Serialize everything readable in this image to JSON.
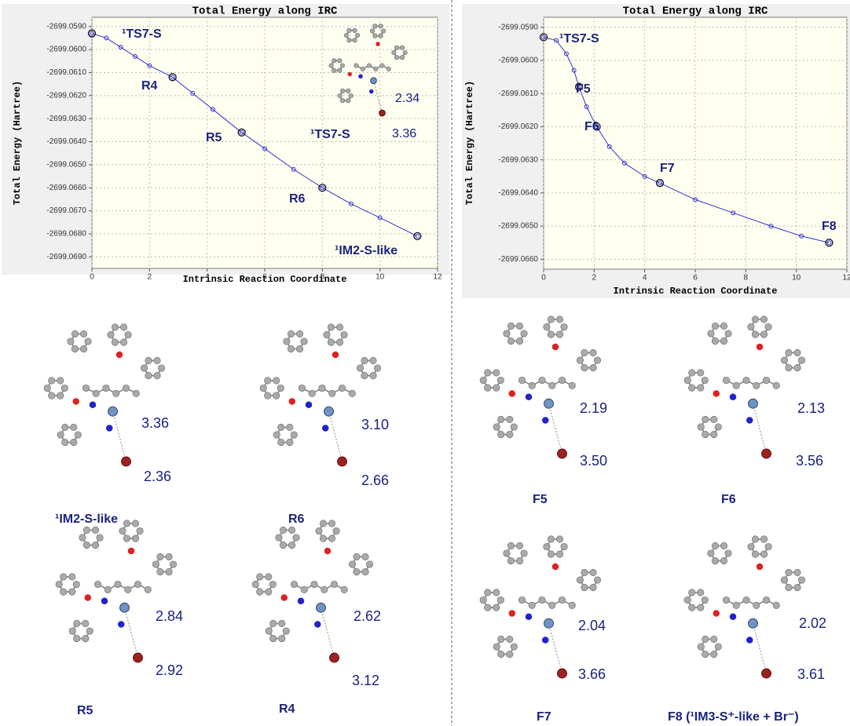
{
  "chart_data": [
    {
      "type": "line",
      "title": "Total Energy along IRC",
      "xlabel": "Intrinsic Reaction Coordinate",
      "ylabel": "Total Energy (Hartree)",
      "color": "#3333cc",
      "grid": true,
      "x": [
        0,
        0.5,
        1,
        1.5,
        2,
        2.8,
        3.5,
        4.2,
        5.2,
        6,
        7,
        8,
        9,
        10,
        11.3
      ],
      "values": [
        -2699.0593,
        -2699.0595,
        -2699.0599,
        -2699.0603,
        -2699.0607,
        -2699.0612,
        -2699.0619,
        -2699.0626,
        -2699.0636,
        -2699.0643,
        -2699.0652,
        -2699.066,
        -2699.0667,
        -2699.0673,
        -2699.0681
      ],
      "xlim": [
        0,
        12
      ],
      "xticks": [
        0,
        2,
        4,
        6,
        8,
        10,
        12
      ],
      "ylim": [
        -2699.0695,
        -2699.0586
      ],
      "yticks": [
        {
          "value": -2699.059,
          "label": "-2699.0590"
        },
        {
          "value": -2699.06,
          "label": "-2699.0600"
        },
        {
          "value": -2699.061,
          "label": "-2699.0610"
        },
        {
          "value": -2699.062,
          "label": "-2699.0620"
        },
        {
          "value": -2699.063,
          "label": "-2699.0630"
        },
        {
          "value": -2699.064,
          "label": "-2699.0640"
        },
        {
          "value": -2699.065,
          "label": "-2699.0650"
        },
        {
          "value": -2699.066,
          "label": "-2699.0660"
        },
        {
          "value": -2699.067,
          "label": "-2699.0670"
        },
        {
          "value": -2699.068,
          "label": "-2699.0680"
        },
        {
          "value": -2699.069,
          "label": "-2699.0690"
        }
      ],
      "points": [
        {
          "label": "¹TS7-S",
          "x": 0,
          "y": -2699.0593
        },
        {
          "label": "R4",
          "x": 2.8,
          "y": -2699.0612
        },
        {
          "label": "R5",
          "x": 5.2,
          "y": -2699.0636
        },
        {
          "label": "R6",
          "x": 8,
          "y": -2699.066
        },
        {
          "label": "¹IM2-S-like",
          "x": 11.3,
          "y": -2699.0681
        }
      ],
      "inset_label": "¹TS7-S",
      "inset_distances": [
        "2.34",
        "3.36"
      ]
    },
    {
      "type": "line",
      "title": "Total Energy along IRC",
      "xlabel": "Intrinsic Reaction Coordinate",
      "ylabel": "Total Energy (Hartree)",
      "color": "#3333cc",
      "grid": true,
      "x": [
        0,
        0.5,
        0.9,
        1.2,
        1.4,
        1.7,
        2.1,
        2.6,
        3.2,
        4,
        4.6,
        6,
        7.5,
        9,
        10.2,
        11.3
      ],
      "values": [
        -2699.0593,
        -2699.0594,
        -2699.0598,
        -2699.0603,
        -2699.0608,
        -2699.0614,
        -2699.062,
        -2699.0626,
        -2699.0631,
        -2699.0635,
        -2699.0637,
        -2699.0642,
        -2699.0646,
        -2699.065,
        -2699.0653,
        -2699.0655
      ],
      "xlim": [
        0,
        12
      ],
      "xticks": [
        0,
        2,
        4,
        6,
        8,
        10,
        12
      ],
      "ylim": [
        -2699.0663,
        -2699.0587
      ],
      "yticks": [
        {
          "value": -2699.059,
          "label": "-2699.0590"
        },
        {
          "value": -2699.06,
          "label": "-2699.0600"
        },
        {
          "value": -2699.061,
          "label": "-2699.0610"
        },
        {
          "value": -2699.062,
          "label": "-2699.0620"
        },
        {
          "value": -2699.063,
          "label": "-2699.0630"
        },
        {
          "value": -2699.064,
          "label": "-2699.0640"
        },
        {
          "value": -2699.065,
          "label": "-2699.0650"
        },
        {
          "value": -2699.066,
          "label": "-2699.0660"
        }
      ],
      "points": [
        {
          "label": "¹TS7-S",
          "x": 0,
          "y": -2699.0593
        },
        {
          "label": "F5",
          "x": 1.4,
          "y": -2699.0608
        },
        {
          "label": "F6",
          "x": 2.1,
          "y": -2699.062
        },
        {
          "label": "F7",
          "x": 4.6,
          "y": -2699.0637
        },
        {
          "label": "F8",
          "x": 11.3,
          "y": -2699.0655
        }
      ]
    }
  ],
  "structures": [
    {
      "label": "¹IM2-S-like",
      "distances": [
        "3.36",
        "2.36"
      ]
    },
    {
      "label": "R6",
      "distances": [
        "3.10",
        "2.66"
      ]
    },
    {
      "label": "R5",
      "distances": [
        "2.84",
        "2.92"
      ]
    },
    {
      "label": "R4",
      "distances": [
        "2.62",
        "3.12"
      ]
    },
    {
      "label": "F5",
      "distances": [
        "2.19",
        "3.50"
      ]
    },
    {
      "label": "F6",
      "distances": [
        "2.13",
        "3.56"
      ]
    },
    {
      "label": "F7",
      "distances": [
        "2.04",
        "3.66"
      ]
    },
    {
      "label": "F8 (¹IM3-S⁺-like + Br⁻)",
      "distances": [
        "2.02",
        "3.61"
      ]
    }
  ]
}
